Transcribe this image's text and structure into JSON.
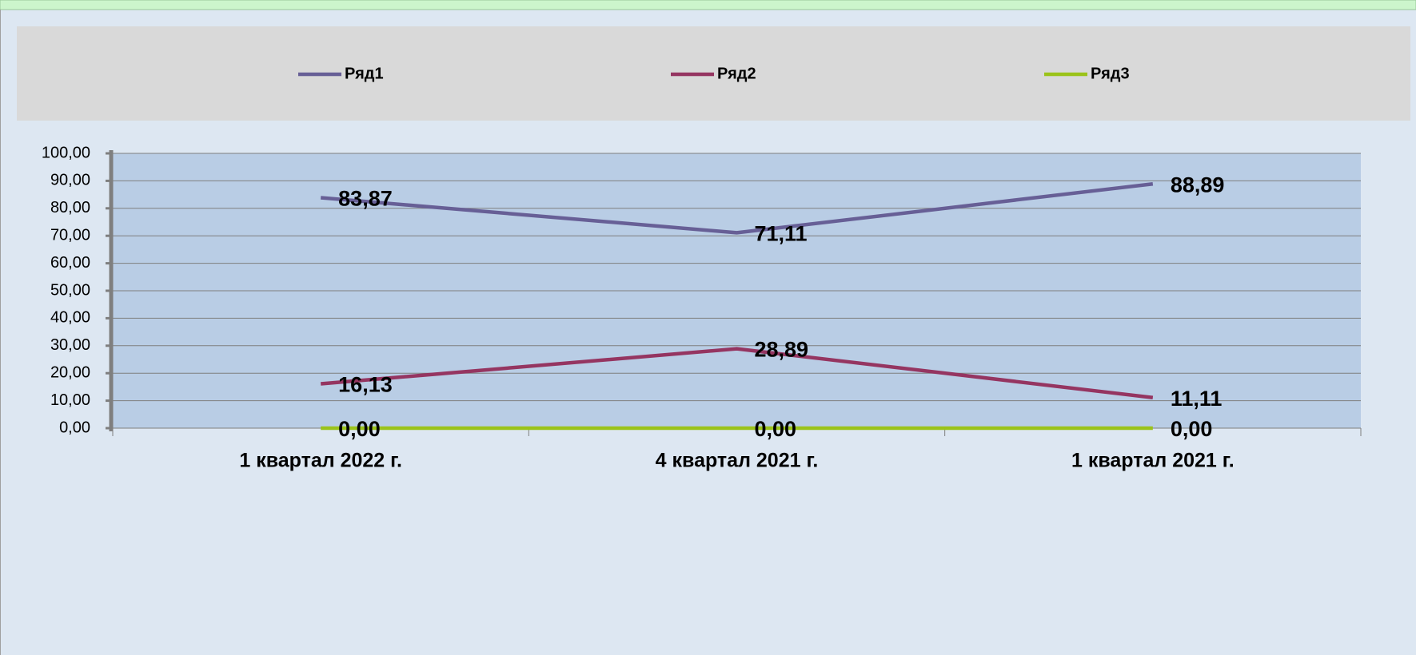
{
  "chart_data": {
    "type": "line",
    "categories": [
      "1 квартал 2022 г.",
      "4 квартал 2021 г.",
      "1 квартал 2021 г."
    ],
    "series": [
      {
        "name": "Ряд1",
        "color": "#675f96",
        "values": [
          83.87,
          71.11,
          88.89
        ],
        "value_labels": [
          "83,87",
          "71,11",
          "88,89"
        ]
      },
      {
        "name": "Ряд2",
        "color": "#953561",
        "values": [
          16.13,
          28.89,
          11.11
        ],
        "value_labels": [
          "16,13",
          "28,89",
          "11,11"
        ]
      },
      {
        "name": "Ряд3",
        "color": "#9bc31a",
        "values": [
          0,
          0,
          0
        ],
        "value_labels": [
          "0,00",
          "0,00",
          "0,00"
        ]
      }
    ],
    "ylim": [
      0,
      100
    ],
    "yticks": [
      {
        "value": 0,
        "label": "0,00"
      },
      {
        "value": 10,
        "label": "10,00"
      },
      {
        "value": 20,
        "label": "20,00"
      },
      {
        "value": 30,
        "label": "30,00"
      },
      {
        "value": 40,
        "label": "40,00"
      },
      {
        "value": 50,
        "label": "50,00"
      },
      {
        "value": 60,
        "label": "60,00"
      },
      {
        "value": 70,
        "label": "70,00"
      },
      {
        "value": 80,
        "label": "80,00"
      },
      {
        "value": 90,
        "label": "90,00"
      },
      {
        "value": 100,
        "label": "100,00"
      }
    ],
    "grid": true,
    "legend": "top"
  }
}
